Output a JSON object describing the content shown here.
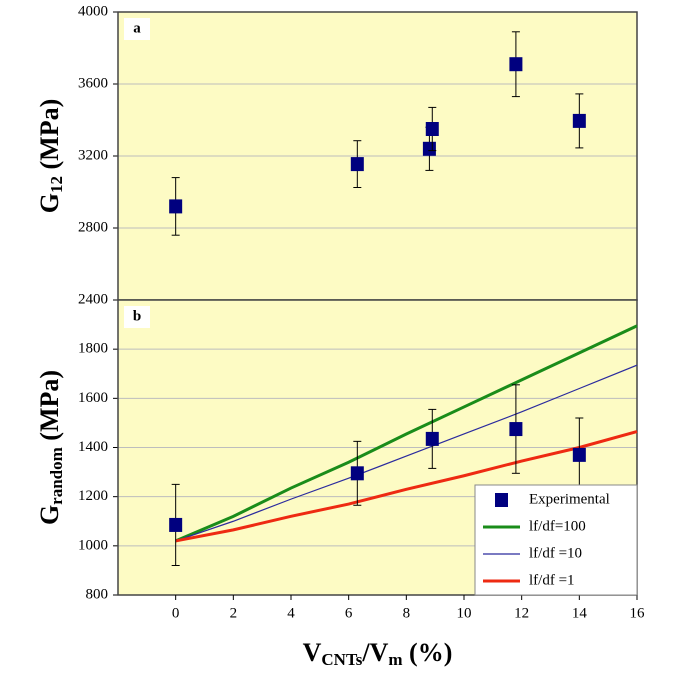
{
  "chart_data": [
    {
      "type": "scatter",
      "panel": "a",
      "ylabel": {
        "main": "G",
        "sub": "12",
        "rest": " (MPa)"
      },
      "xlim": [
        -2,
        16
      ],
      "ylim": [
        2400,
        4000
      ],
      "yticks": [
        2400,
        2800,
        3200,
        3600,
        4000
      ],
      "grid": true,
      "series": [
        {
          "name": "Experimental",
          "color": "#00007f",
          "marker": "square",
          "x": [
            0,
            6.3,
            8.8,
            8.9,
            11.8,
            14
          ],
          "values": [
            2920,
            3155,
            3240,
            3350,
            3710,
            3395
          ],
          "errors": [
            160,
            130,
            120,
            120,
            180,
            150
          ]
        }
      ]
    },
    {
      "type": "scatter",
      "panel": "b",
      "ylabel": {
        "main": "G",
        "sub": "random",
        "rest": " (MPa)"
      },
      "xlabel": {
        "main": "V",
        "sub": "CNTs",
        "mid": "/V",
        "sub2": "m",
        "rest": " (%)"
      },
      "xlim": [
        -2,
        16
      ],
      "xticks": [
        0,
        2,
        4,
        6,
        8,
        10,
        12,
        14,
        16
      ],
      "ylim": [
        800,
        2000
      ],
      "yticks": [
        800,
        1000,
        1200,
        1400,
        1600,
        1800
      ],
      "grid": true,
      "legend": "lower right",
      "series": [
        {
          "name": "Experimental",
          "color": "#00007f",
          "marker": "square",
          "x": [
            0,
            6.3,
            8.9,
            11.8,
            14
          ],
          "values": [
            1085,
            1295,
            1435,
            1475,
            1370
          ],
          "errors": [
            165,
            130,
            120,
            180,
            150
          ]
        },
        {
          "name": "lf/df=100",
          "color": "#1a8c1a",
          "marker": "line",
          "width": 3,
          "x": [
            0,
            2,
            4,
            6,
            8,
            10,
            12,
            14,
            16
          ],
          "values": [
            1020,
            1120,
            1235,
            1340,
            1455,
            1565,
            1675,
            1785,
            1895
          ]
        },
        {
          "name": "lf/df =10",
          "color": "#2b2b9e",
          "marker": "line",
          "width": 1.2,
          "x": [
            0,
            2,
            4,
            6,
            8,
            10,
            12,
            14,
            16
          ],
          "values": [
            1020,
            1100,
            1190,
            1275,
            1365,
            1455,
            1545,
            1640,
            1735
          ]
        },
        {
          "name": "lf/df =1",
          "color": "#ee2a12",
          "marker": "line",
          "width": 3,
          "x": [
            0,
            2,
            4,
            6,
            8,
            10,
            12,
            14,
            16
          ],
          "values": [
            1020,
            1065,
            1120,
            1170,
            1230,
            1285,
            1345,
            1400,
            1465
          ]
        }
      ]
    }
  ]
}
